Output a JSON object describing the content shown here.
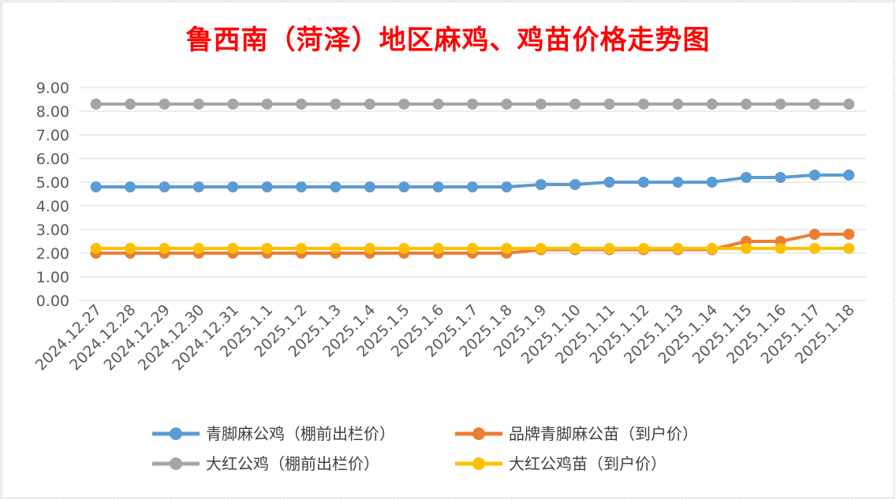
{
  "chart_data": {
    "type": "line",
    "title": "鲁西南（菏泽）地区麻鸡、鸡苗价格走势图",
    "xlabel": "",
    "ylabel": "",
    "ylim": [
      0,
      9
    ],
    "yticks": [
      "0.00",
      "1.00",
      "2.00",
      "3.00",
      "4.00",
      "5.00",
      "6.00",
      "7.00",
      "8.00",
      "9.00"
    ],
    "grid": true,
    "legend_position": "bottom",
    "categories": [
      "2024.12.27",
      "2024.12.28",
      "2024.12.29",
      "2024.12.30",
      "2024.12.31",
      "2025.1.1",
      "2025.1.2",
      "2025.1.3",
      "2025.1.4",
      "2025.1.5",
      "2025.1.6",
      "2025.1.7",
      "2025.1.8",
      "2025.1.9",
      "2025.1.10",
      "2025.1.11",
      "2025.1.12",
      "2025.1.13",
      "2025.1.14",
      "2025.1.15",
      "2025.1.16",
      "2025.1.17",
      "2025.1.18"
    ],
    "series": [
      {
        "name": "青脚麻公鸡（棚前出栏价）",
        "color": "#5b9bd5",
        "values": [
          4.8,
          4.8,
          4.8,
          4.8,
          4.8,
          4.8,
          4.8,
          4.8,
          4.8,
          4.8,
          4.8,
          4.8,
          4.8,
          4.9,
          4.9,
          5.0,
          5.0,
          5.0,
          5.0,
          5.2,
          5.2,
          5.3,
          5.3
        ]
      },
      {
        "name": "品牌青脚麻公苗（到户价）",
        "color": "#ed7d31",
        "values": [
          2.0,
          2.0,
          2.0,
          2.0,
          2.0,
          2.0,
          2.0,
          2.0,
          2.0,
          2.0,
          2.0,
          2.0,
          2.0,
          2.15,
          2.15,
          2.15,
          2.15,
          2.15,
          2.15,
          2.5,
          2.5,
          2.8,
          2.8
        ]
      },
      {
        "name": "大红公鸡（棚前出栏价）",
        "color": "#a5a5a5",
        "values": [
          8.3,
          8.3,
          8.3,
          8.3,
          8.3,
          8.3,
          8.3,
          8.3,
          8.3,
          8.3,
          8.3,
          8.3,
          8.3,
          8.3,
          8.3,
          8.3,
          8.3,
          8.3,
          8.3,
          8.3,
          8.3,
          8.3,
          8.3
        ]
      },
      {
        "name": "大红公鸡苗（到户价）",
        "color": "#ffc000",
        "values": [
          2.2,
          2.2,
          2.2,
          2.2,
          2.2,
          2.2,
          2.2,
          2.2,
          2.2,
          2.2,
          2.2,
          2.2,
          2.2,
          2.2,
          2.2,
          2.2,
          2.2,
          2.2,
          2.2,
          2.2,
          2.2,
          2.2,
          2.2
        ]
      }
    ]
  }
}
